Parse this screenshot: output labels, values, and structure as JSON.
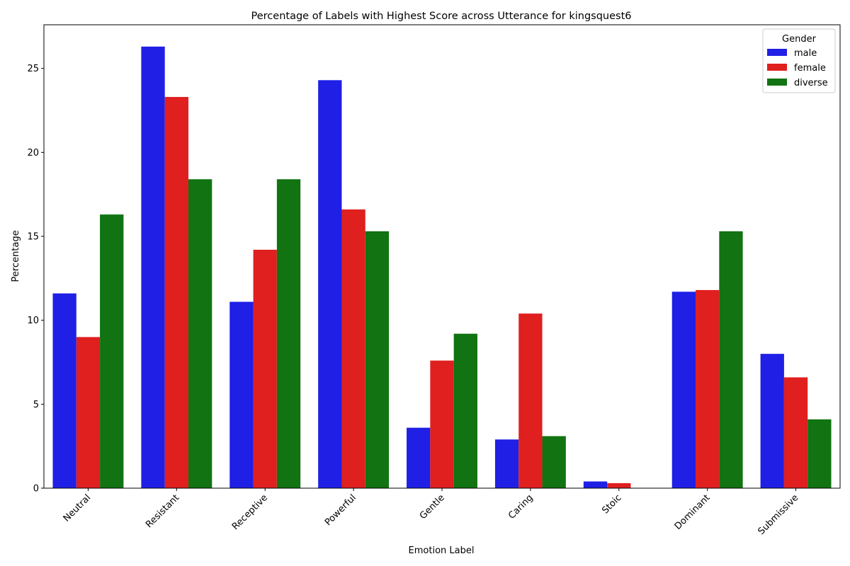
{
  "chart_data": {
    "type": "bar",
    "title": "Percentage of Labels with Highest Score across Utterance for kingsquest6",
    "xlabel": "Emotion Label",
    "ylabel": "Percentage",
    "ylim": [
      0,
      27.6
    ],
    "yticks": [
      0,
      5,
      10,
      15,
      20,
      25
    ],
    "grid": false,
    "categories": [
      "Neutral",
      "Resistant",
      "Receptive",
      "Powerful",
      "Gentle",
      "Caring",
      "Stoic",
      "Dominant",
      "Submissive"
    ],
    "series": [
      {
        "name": "male",
        "color": "#1f1fe6",
        "values": [
          11.6,
          26.3,
          11.1,
          24.3,
          3.6,
          2.9,
          0.4,
          11.7,
          8.0
        ]
      },
      {
        "name": "female",
        "color": "#e01f1f",
        "values": [
          9.0,
          23.3,
          14.2,
          16.6,
          7.6,
          10.4,
          0.3,
          11.8,
          6.6
        ]
      },
      {
        "name": "diverse",
        "color": "#117311",
        "values": [
          16.3,
          18.4,
          18.4,
          15.3,
          9.2,
          3.1,
          0.0,
          15.3,
          4.1
        ]
      }
    ],
    "legend": {
      "title": "Gender",
      "position": "top-right"
    }
  }
}
